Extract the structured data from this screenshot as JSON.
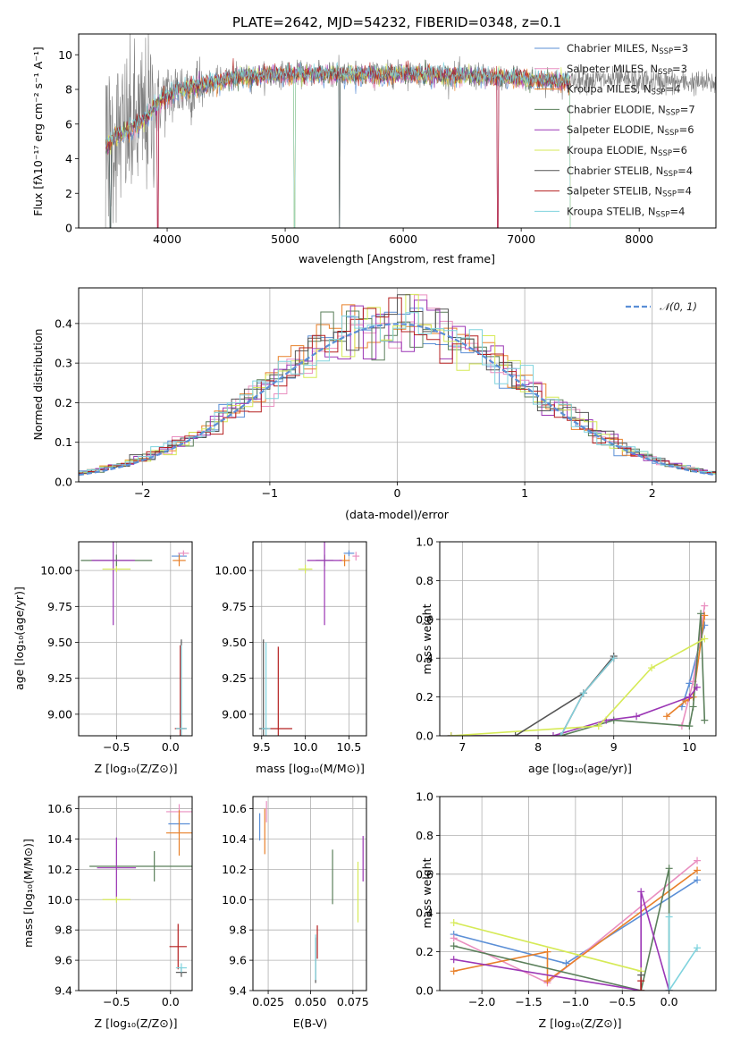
{
  "colors": {
    "chabrier_miles": "#5b8fd6",
    "salpeter_miles": "#e98fc0",
    "kroupa_miles": "#e8802a",
    "chabrier_elodie": "#5a7f5a",
    "salpeter_elodie": "#9b36b5",
    "kroupa_elodie": "#d6ea57",
    "chabrier_stelib": "#555555",
    "salpeter_stelib": "#b52020",
    "kroupa_stelib": "#7fd3de",
    "gauss": "#5b8fd6"
  },
  "chart_data": [
    {
      "id": "spectrum",
      "type": "line",
      "title": "PLATE=2642, MJD=54232, FIBERID=0348, z=0.1",
      "xlabel": "wavelength [Angstrom, rest frame]",
      "ylabel": "Flux [fλ10⁻¹⁷ erg cm⁻² s⁻¹ A⁻¹]",
      "xlim": [
        3250,
        8650
      ],
      "ylim": [
        0,
        11.2
      ],
      "xticks": [
        "4000",
        "5000",
        "6000",
        "7000",
        "8000"
      ],
      "yticks": [
        "0",
        "2",
        "4",
        "6",
        "8",
        "10"
      ],
      "grid": false,
      "legend_position": "right",
      "legend": [
        {
          "label": "Chabrier MILES, N",
          "sub": "SSP",
          "value": "=3"
        },
        {
          "label": "Salpeter MILES, N",
          "sub": "SSP",
          "value": "=3"
        },
        {
          "label": "Kroupa MILES, N",
          "sub": "SSP",
          "value": "=4"
        },
        {
          "label": "Chabrier ELODIE, N",
          "sub": "SSP",
          "value": "=7"
        },
        {
          "label": "Salpeter ELODIE, N",
          "sub": "SSP",
          "value": "=6"
        },
        {
          "label": "Kroupa ELODIE, N",
          "sub": "SSP",
          "value": "=6"
        },
        {
          "label": "Chabrier STELIB, N",
          "sub": "SSP",
          "value": "=4"
        },
        {
          "label": "Salpeter STELIB, N",
          "sub": "SSP",
          "value": "=4"
        },
        {
          "label": "Kroupa STELIB, N",
          "sub": "SSP",
          "value": "=4"
        }
      ],
      "continuum": [
        [
          3480,
          4.6
        ],
        [
          3550,
          5.2
        ],
        [
          3650,
          5.5
        ],
        [
          3800,
          6.2
        ],
        [
          3950,
          7.4
        ],
        [
          4100,
          8.0
        ],
        [
          4300,
          8.2
        ],
        [
          4500,
          8.6
        ],
        [
          4800,
          8.8
        ],
        [
          5000,
          8.9
        ],
        [
          5300,
          8.9
        ],
        [
          5600,
          8.8
        ],
        [
          6000,
          8.9
        ],
        [
          6500,
          8.8
        ],
        [
          7000,
          8.6
        ],
        [
          7400,
          8.4
        ]
      ],
      "observed_extent": [
        3250,
        8650
      ],
      "model_extent": [
        3480,
        7420
      ],
      "dropouts": [
        3520,
        3920,
        5080,
        5460,
        6800,
        7420
      ]
    },
    {
      "id": "residuals",
      "type": "histogram",
      "xlabel": "(data-model)/error",
      "ylabel": "Normed distribution",
      "xlim": [
        -2.5,
        2.5
      ],
      "ylim": [
        0,
        0.49
      ],
      "xticks": [
        "−2",
        "−1",
        "0",
        "1",
        "2"
      ],
      "yticks": [
        "0.0",
        "0.1",
        "0.2",
        "0.3",
        "0.4"
      ],
      "grid": true,
      "bin_width": 0.1,
      "legend": "𝒩(0, 1)",
      "legend_position": "top-right"
    },
    {
      "id": "age_vs_Z",
      "type": "errorbar",
      "xlabel": "Z [log₁₀(Z/Z⊙)]",
      "ylabel": "age  [log₁₀(age/yr)]",
      "xlim": [
        -0.85,
        0.2
      ],
      "ylim": [
        8.85,
        10.2
      ],
      "xticks": [
        "−0.5",
        "0.0"
      ],
      "yticks": [
        "9.00",
        "9.25",
        "9.50",
        "9.75",
        "10.00"
      ],
      "grid": true,
      "points": [
        {
          "model": "chabrier_miles",
          "x": 0.08,
          "y": 10.1,
          "xe": 0.07,
          "ye": 0.02
        },
        {
          "model": "salpeter_miles",
          "x": 0.12,
          "y": 10.12,
          "xe": 0.05,
          "ye": 0.02
        },
        {
          "model": "kroupa_miles",
          "x": 0.08,
          "y": 10.07,
          "xe": 0.06,
          "ye": 0.04
        },
        {
          "model": "chabrier_elodie",
          "x": -0.5,
          "y": 10.07,
          "xe": 0.33,
          "ye": 0.04
        },
        {
          "model": "salpeter_elodie",
          "x": -0.53,
          "y": 10.07,
          "xe": 0.2,
          "ye": 0.45
        },
        {
          "model": "kroupa_elodie",
          "x": -0.5,
          "y": 10.01,
          "xe": 0.13,
          "ye": 0.02
        },
        {
          "model": "chabrier_stelib",
          "x": 0.1,
          "y": 8.9,
          "xe": 0.05,
          "ye": 0.62
        },
        {
          "model": "salpeter_stelib",
          "x": 0.09,
          "y": 8.9,
          "xe": 0.05,
          "ye": 0.58
        },
        {
          "model": "kroupa_stelib",
          "x": 0.1,
          "y": 8.9,
          "xe": 0.05,
          "ye": 0.58
        }
      ]
    },
    {
      "id": "age_vs_mass",
      "type": "errorbar",
      "xlabel": "mass [log₁₀(M/M⊙)]",
      "ylabel": "",
      "xlim": [
        9.4,
        10.7
      ],
      "ylim": [
        8.85,
        10.2
      ],
      "xticks": [
        "9.5",
        "10.0",
        "10.5"
      ],
      "yticks": [
        "9.00",
        "9.25",
        "9.50",
        "9.75",
        "10.00"
      ],
      "grid": true,
      "points": [
        {
          "model": "chabrier_miles",
          "x": 10.5,
          "y": 10.12,
          "xe": 0.06,
          "ye": 0.02
        },
        {
          "model": "salpeter_miles",
          "x": 10.58,
          "y": 10.1,
          "xe": 0.04,
          "ye": 0.03
        },
        {
          "model": "kroupa_miles",
          "x": 10.45,
          "y": 10.07,
          "xe": 0.06,
          "ye": 0.04
        },
        {
          "model": "chabrier_elodie",
          "x": 10.22,
          "y": 10.07,
          "xe": 0.1,
          "ye": 0.04
        },
        {
          "model": "salpeter_elodie",
          "x": 10.22,
          "y": 10.07,
          "xe": 0.2,
          "ye": 0.45
        },
        {
          "model": "kroupa_elodie",
          "x": 10.0,
          "y": 10.01,
          "xe": 0.08,
          "ye": 0.03
        },
        {
          "model": "chabrier_stelib",
          "x": 9.52,
          "y": 8.9,
          "xe": 0.05,
          "ye": 0.62
        },
        {
          "model": "salpeter_stelib",
          "x": 9.69,
          "y": 8.9,
          "xe": 0.16,
          "ye": 0.57
        },
        {
          "model": "kroupa_stelib",
          "x": 9.55,
          "y": 8.9,
          "xe": 0.05,
          "ye": 0.6
        }
      ]
    },
    {
      "id": "massweight_vs_age",
      "type": "line",
      "xlabel": "age  [log₁₀(age/yr)]",
      "ylabel": "mass weight",
      "xlim": [
        6.7,
        10.35
      ],
      "ylim": [
        0,
        1.0
      ],
      "xticks": [
        "7",
        "8",
        "9",
        "10"
      ],
      "yticks": [
        "0.0",
        "0.2",
        "0.4",
        "0.6",
        "0.8",
        "1.0"
      ],
      "grid": true,
      "series": [
        {
          "model": "chabrier_miles",
          "points": [
            [
              9.9,
              0.15
            ],
            [
              10.0,
              0.27
            ],
            [
              10.2,
              0.57
            ]
          ]
        },
        {
          "model": "salpeter_miles",
          "points": [
            [
              9.9,
              0.05
            ],
            [
              10.05,
              0.28
            ],
            [
              10.2,
              0.67
            ]
          ]
        },
        {
          "model": "kroupa_miles",
          "points": [
            [
              9.7,
              0.1
            ],
            [
              9.95,
              0.18
            ],
            [
              10.05,
              0.2
            ],
            [
              10.2,
              0.62
            ]
          ]
        },
        {
          "model": "chabrier_elodie",
          "points": [
            [
              6.85,
              0.0
            ],
            [
              8.3,
              0.0
            ],
            [
              9.0,
              0.08
            ],
            [
              10.0,
              0.05
            ],
            [
              10.05,
              0.15
            ],
            [
              10.15,
              0.63
            ],
            [
              10.2,
              0.08
            ]
          ]
        },
        {
          "model": "salpeter_elodie",
          "points": [
            [
              6.85,
              0.0
            ],
            [
              8.2,
              0.0
            ],
            [
              8.9,
              0.08
            ],
            [
              9.3,
              0.1
            ],
            [
              10.0,
              0.2
            ],
            [
              10.1,
              0.25
            ]
          ]
        },
        {
          "model": "kroupa_elodie",
          "points": [
            [
              6.85,
              0.0
            ],
            [
              8.8,
              0.05
            ],
            [
              9.5,
              0.35
            ],
            [
              10.2,
              0.5
            ]
          ]
        },
        {
          "model": "chabrier_stelib",
          "points": [
            [
              7.7,
              0.0
            ],
            [
              8.6,
              0.22
            ],
            [
              9.0,
              0.41
            ]
          ]
        },
        {
          "model": "salpeter_stelib",
          "points": [
            [
              8.3,
              0.0
            ],
            [
              8.6,
              0.22
            ],
            [
              9.0,
              0.4
            ]
          ]
        },
        {
          "model": "kroupa_stelib",
          "points": [
            [
              8.3,
              0.0
            ],
            [
              8.6,
              0.22
            ],
            [
              9.0,
              0.4
            ]
          ]
        }
      ]
    },
    {
      "id": "mass_vs_Z",
      "type": "errorbar",
      "xlabel": "Z [log₁₀(Z/Z⊙)]",
      "ylabel": "mass [log₁₀(M/M⊙)]",
      "xlim": [
        -0.85,
        0.2
      ],
      "ylim": [
        9.4,
        10.68
      ],
      "xticks": [
        "−0.5",
        "0.0"
      ],
      "yticks": [
        "9.4",
        "9.6",
        "9.8",
        "10.0",
        "10.2",
        "10.4",
        "10.6"
      ],
      "grid": true,
      "points": [
        {
          "model": "chabrier_miles",
          "x": 0.08,
          "y": 10.5,
          "xe": 0.1,
          "ye": 0.06
        },
        {
          "model": "salpeter_miles",
          "x": 0.08,
          "y": 10.58,
          "xe": 0.12,
          "ye": 0.05
        },
        {
          "model": "kroupa_miles",
          "x": 0.08,
          "y": 10.44,
          "xe": 0.12,
          "ye": 0.15
        },
        {
          "model": "chabrier_elodie",
          "x": -0.15,
          "y": 10.22,
          "xe": 0.6,
          "ye": 0.1
        },
        {
          "model": "salpeter_elodie",
          "x": -0.5,
          "y": 10.21,
          "xe": 0.18,
          "ye": 0.2
        },
        {
          "model": "kroupa_elodie",
          "x": -0.5,
          "y": 10.0,
          "xe": 0.13,
          "ye": 0.02
        },
        {
          "model": "chabrier_stelib",
          "x": 0.1,
          "y": 9.52,
          "xe": 0.05,
          "ye": 0.03
        },
        {
          "model": "salpeter_stelib",
          "x": 0.07,
          "y": 9.69,
          "xe": 0.08,
          "ye": 0.15
        },
        {
          "model": "kroupa_stelib",
          "x": 0.1,
          "y": 9.55,
          "xe": 0.05,
          "ye": 0.03
        }
      ]
    },
    {
      "id": "mass_vs_ebv",
      "type": "errorbar",
      "xlabel": "E(B-V)",
      "ylabel": "",
      "xlim": [
        0.016,
        0.083
      ],
      "ylim": [
        9.4,
        10.68
      ],
      "xticks": [
        "0.025",
        "0.050",
        "0.075"
      ],
      "yticks": [
        "9.4",
        "9.6",
        "9.8",
        "10.0",
        "10.2",
        "10.4",
        "10.6"
      ],
      "grid": true,
      "points": [
        {
          "model": "chabrier_miles",
          "x": 0.02,
          "y": 10.48,
          "xe": 0.0,
          "ye": 0.09
        },
        {
          "model": "salpeter_miles",
          "x": 0.024,
          "y": 10.58,
          "xe": 0.0,
          "ye": 0.07
        },
        {
          "model": "kroupa_miles",
          "x": 0.023,
          "y": 10.45,
          "xe": 0.0,
          "ye": 0.15
        },
        {
          "model": "chabrier_elodie",
          "x": 0.063,
          "y": 10.15,
          "xe": 0.0,
          "ye": 0.18
        },
        {
          "model": "salpeter_elodie",
          "x": 0.081,
          "y": 10.27,
          "xe": 0.0,
          "ye": 0.15
        },
        {
          "model": "kroupa_elodie",
          "x": 0.078,
          "y": 10.05,
          "xe": 0.0,
          "ye": 0.2
        },
        {
          "model": "chabrier_stelib",
          "x": 0.053,
          "y": 9.6,
          "xe": 0.0,
          "ye": 0.15
        },
        {
          "model": "salpeter_stelib",
          "x": 0.054,
          "y": 9.72,
          "xe": 0.0,
          "ye": 0.11
        },
        {
          "model": "kroupa_stelib",
          "x": 0.053,
          "y": 9.62,
          "xe": 0.0,
          "ye": 0.15
        }
      ]
    },
    {
      "id": "massweight_vs_Z",
      "type": "line",
      "xlabel": "Z [log₁₀(Z/Z⊙)]",
      "ylabel": "mass weight",
      "xlim": [
        -2.45,
        0.5
      ],
      "ylim": [
        0,
        1.0
      ],
      "xticks": [
        "−2.0",
        "−1.5",
        "−1.0",
        "−0.5",
        "0.0"
      ],
      "yticks": [
        "0.0",
        "0.2",
        "0.4",
        "0.6",
        "0.8",
        "1.0"
      ],
      "grid": true,
      "series": [
        {
          "model": "chabrier_miles",
          "points": [
            [
              -2.3,
              0.29
            ],
            [
              -1.1,
              0.14
            ],
            [
              0.3,
              0.57
            ]
          ]
        },
        {
          "model": "salpeter_miles",
          "points": [
            [
              -2.3,
              0.27
            ],
            [
              -1.3,
              0.04
            ],
            [
              0.3,
              0.67
            ]
          ]
        },
        {
          "model": "kroupa_miles",
          "points": [
            [
              -2.3,
              0.1
            ],
            [
              -1.3,
              0.2
            ],
            [
              -1.3,
              0.05
            ],
            [
              0.3,
              0.62
            ]
          ]
        },
        {
          "model": "chabrier_elodie",
          "points": [
            [
              -2.3,
              0.23
            ],
            [
              -0.3,
              0.0
            ],
            [
              0.0,
              0.63
            ],
            [
              0.0,
              0.0
            ]
          ]
        },
        {
          "model": "salpeter_elodie",
          "points": [
            [
              -2.3,
              0.16
            ],
            [
              -0.3,
              0.0
            ],
            [
              -0.3,
              0.51
            ],
            [
              0.0,
              0.0
            ]
          ]
        },
        {
          "model": "kroupa_elodie",
          "points": [
            [
              -2.3,
              0.35
            ],
            [
              -0.3,
              0.1
            ],
            [
              -0.3,
              0.0
            ]
          ]
        },
        {
          "model": "chabrier_stelib",
          "points": [
            [
              -0.3,
              0.08
            ],
            [
              -0.3,
              0.0
            ]
          ]
        },
        {
          "model": "salpeter_stelib",
          "points": [
            [
              -0.3,
              0.05
            ],
            [
              -0.3,
              0.0
            ]
          ]
        },
        {
          "model": "kroupa_stelib",
          "points": [
            [
              0.0,
              0.38
            ],
            [
              0.0,
              0.0
            ],
            [
              0.3,
              0.22
            ]
          ]
        }
      ]
    }
  ]
}
